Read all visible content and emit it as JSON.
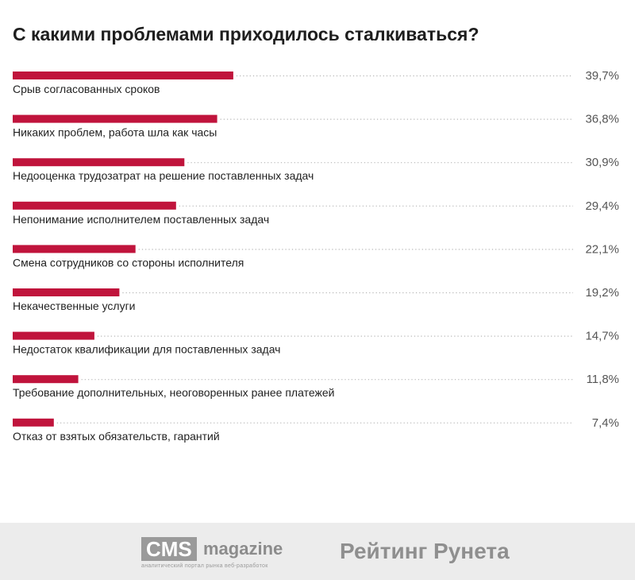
{
  "chart_data": {
    "type": "bar",
    "orientation": "horizontal",
    "title": "С какими проблемами приходилось сталкиваться?",
    "categories": [
      "Срыв согласованных сроков",
      "Никаких проблем, работа шла как часы",
      "Недооценка трудозатрат на решение поставленных задач",
      "Непонимание исполнителем поставленных задач",
      "Смена сотрудников со стороны исполнителя",
      "Некачественные услуги",
      "Недостаток квалификации для поставленных задач",
      "Требование дополнительных, неоговоренных ранее платежей",
      "Отказ от взятых обязательств, гарантий"
    ],
    "values": [
      39.7,
      36.8,
      30.9,
      29.4,
      22.1,
      19.2,
      14.7,
      11.8,
      7.4
    ],
    "value_labels": [
      "39,7%",
      "36,8%",
      "30,9%",
      "29,4%",
      "22,1%",
      "19,2%",
      "14,7%",
      "11,8%",
      "7,4%"
    ],
    "bar_color": "#c0143c",
    "grid": false,
    "legend": "none"
  },
  "footer": {
    "cms_box": "CMS",
    "cms_magazine": "magazine",
    "cms_tagline": "аналитический портал рынка веб-разработок",
    "rating": "Рейтинг Рунета"
  }
}
